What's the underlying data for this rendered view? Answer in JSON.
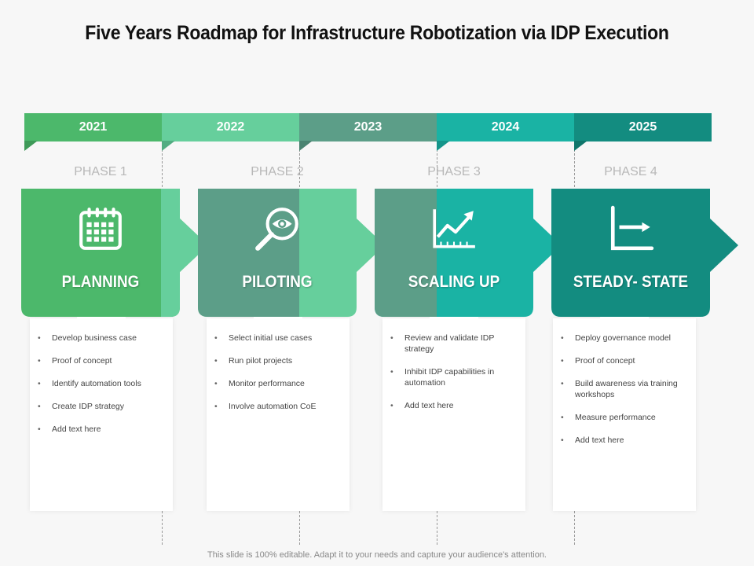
{
  "title": "Five Years Roadmap for Infrastructure Robotization via IDP Execution",
  "years": [
    "2021",
    "2022",
    "2023",
    "2024",
    "2025"
  ],
  "phases": [
    {
      "phase": "PHASE 1",
      "name": "PLANNING",
      "icon": "calendar-icon",
      "items": [
        "Develop business case",
        "Proof of concept",
        "Identify automation  tools",
        "Create IDP strategy",
        "Add text here"
      ]
    },
    {
      "phase": "PHASE 2",
      "name": "PILOTING",
      "icon": "magnifier-eye-icon",
      "items": [
        "Select initial  use cases",
        "Run pilot  projects",
        "Monitor performance",
        "Involve automation  CoE"
      ]
    },
    {
      "phase": "PHASE 3",
      "name": "SCALING UP",
      "icon": "growth-chart-icon",
      "items": [
        "Review and validate  IDP strategy",
        "Inhibit IDP capabilities  in automation",
        "Add text here"
      ]
    },
    {
      "phase": "PHASE 4",
      "name": "STEADY- STATE",
      "icon": "axis-arrow-icon",
      "items": [
        "Deploy governance model",
        "Proof of concept",
        "Build awareness via training workshops",
        "Measure performance",
        "Add text here"
      ]
    }
  ],
  "footer": "This slide is 100% editable. Adapt it to your needs and capture your audience's attention.",
  "colors": {
    "green": "#4cb86b",
    "mint": "#66cf9c",
    "sage": "#5c9e88",
    "teal": "#1ab3a4",
    "deep_teal": "#138c80"
  }
}
